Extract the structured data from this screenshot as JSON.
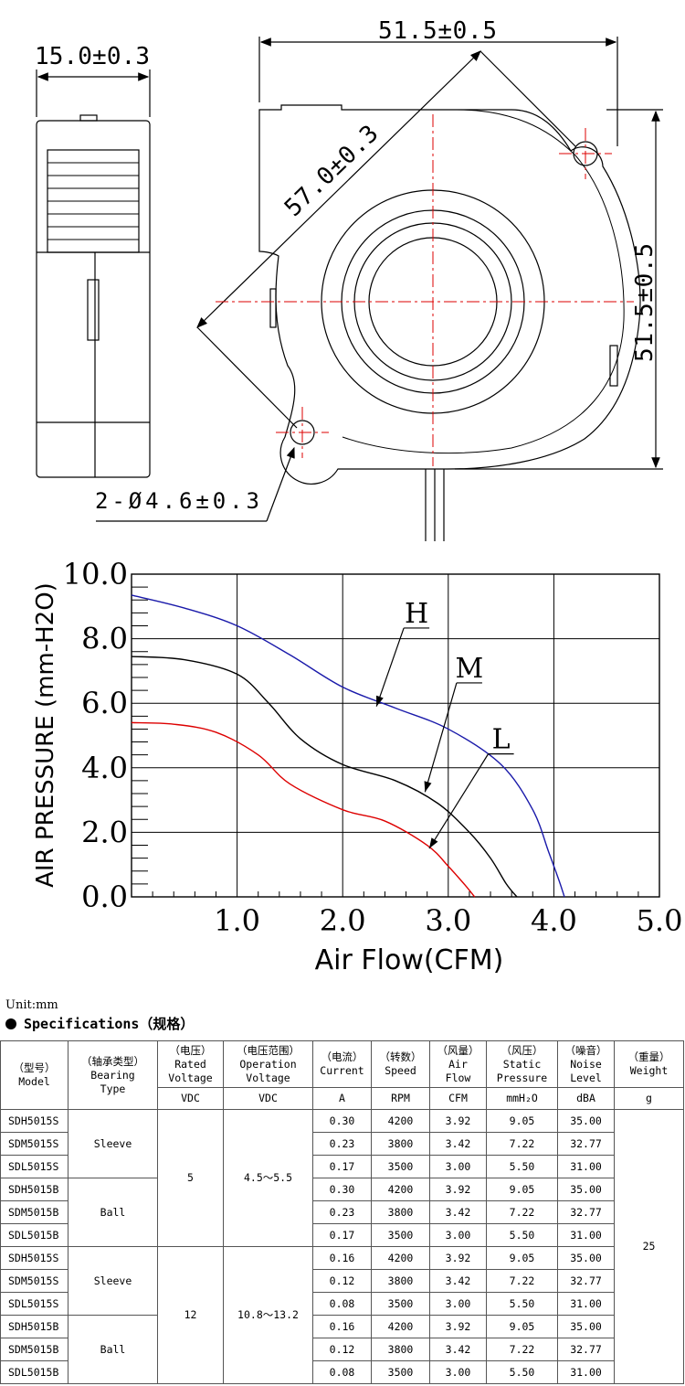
{
  "drawing": {
    "dim_width_top": "51.5±0.5",
    "dim_thickness": "15.0±0.3",
    "dim_diagonal": "57.0±0.3",
    "dim_height_right": "51.5±0.5",
    "dim_holes": "2-Ø4.6±0.3"
  },
  "chart_data": {
    "type": "line",
    "xlabel": "Air Flow(CFM)",
    "ylabel": "AIR PRESSURE (mm-H2O)",
    "xlim": [
      0,
      5.0
    ],
    "ylim": [
      0,
      10.0
    ],
    "x_ticks": [
      "1.0",
      "2.0",
      "3.0",
      "4.0",
      "5.0"
    ],
    "y_ticks": [
      "0.0",
      "2.0",
      "4.0",
      "6.0",
      "8.0",
      "10.0"
    ],
    "series": [
      {
        "name": "H",
        "color": "#1a1aaa",
        "x": [
          0,
          0.5,
          1.0,
          1.5,
          2.0,
          2.5,
          3.0,
          3.5,
          3.8,
          3.95,
          4.05,
          4.1
        ],
        "y": [
          9.35,
          8.95,
          8.4,
          7.5,
          6.5,
          5.85,
          5.2,
          4.1,
          2.7,
          1.4,
          0.5,
          0.0
        ]
      },
      {
        "name": "M",
        "color": "#000000",
        "x": [
          0,
          0.5,
          1.0,
          1.3,
          1.6,
          2.0,
          2.5,
          2.9,
          3.2,
          3.4,
          3.55,
          3.65
        ],
        "y": [
          7.45,
          7.35,
          6.9,
          6.0,
          4.9,
          4.1,
          3.6,
          2.9,
          2.0,
          1.2,
          0.4,
          0.0
        ]
      },
      {
        "name": "L",
        "color": "#dd0000",
        "x": [
          0,
          0.4,
          0.8,
          1.2,
          1.5,
          2.0,
          2.4,
          2.8,
          3.0,
          3.15,
          3.25
        ],
        "y": [
          5.4,
          5.35,
          5.1,
          4.4,
          3.5,
          2.7,
          2.35,
          1.6,
          0.95,
          0.4,
          0.0
        ]
      }
    ],
    "labels": [
      {
        "text": "H",
        "x": 2.7,
        "y": 8.5,
        "arrow_to": [
          2.32,
          5.9
        ]
      },
      {
        "text": "M",
        "x": 3.2,
        "y": 6.8,
        "arrow_to": [
          2.78,
          3.25
        ]
      },
      {
        "text": "L",
        "x": 3.5,
        "y": 4.6,
        "arrow_to": [
          2.82,
          1.5
        ]
      }
    ]
  },
  "specs": {
    "unit": "Unit:mm",
    "title": "Specifications（规格）",
    "headers": {
      "model": "（型号）|Model",
      "bearing": "（轴承类型）|Bearing|Type",
      "rated_voltage": "（电压）|Rated|Voltage",
      "operation_voltage": "（电压范围）|Operation|Voltage",
      "current": "（电流）|Current",
      "speed": "（转数）|Speed",
      "air_flow": "（风量）|Air|Flow",
      "static_pressure": "（风压）|Static|Pressure",
      "noise": "（噪音）|Noise|Level",
      "weight": "（重量）|Weight"
    },
    "units": {
      "rated_voltage": "VDC",
      "operation_voltage": "VDC",
      "current": "A",
      "speed": "RPM",
      "air_flow": "CFM",
      "static_pressure": "mmH₂O",
      "noise": "dBA",
      "weight": "g"
    },
    "bearing_sleeve": "Sleeve",
    "bearing_ball": "Ball",
    "rated_5": "5",
    "rated_12": "12",
    "op_5": "4.5～5.5",
    "op_12": "10.8～13.2",
    "weight": "25",
    "rows": [
      {
        "model": "SDH5015S",
        "current": "0.30",
        "speed": "4200",
        "air_flow": "3.92",
        "pressure": "9.05",
        "noise": "35.00"
      },
      {
        "model": "SDM5015S",
        "current": "0.23",
        "speed": "3800",
        "air_flow": "3.42",
        "pressure": "7.22",
        "noise": "32.77"
      },
      {
        "model": "SDL5015S",
        "current": "0.17",
        "speed": "3500",
        "air_flow": "3.00",
        "pressure": "5.50",
        "noise": "31.00"
      },
      {
        "model": "SDH5015B",
        "current": "0.30",
        "speed": "4200",
        "air_flow": "3.92",
        "pressure": "9.05",
        "noise": "35.00"
      },
      {
        "model": "SDM5015B",
        "current": "0.23",
        "speed": "3800",
        "air_flow": "3.42",
        "pressure": "7.22",
        "noise": "32.77"
      },
      {
        "model": "SDL5015B",
        "current": "0.17",
        "speed": "3500",
        "air_flow": "3.00",
        "pressure": "5.50",
        "noise": "31.00"
      },
      {
        "model": "SDH5015S",
        "current": "0.16",
        "speed": "4200",
        "air_flow": "3.92",
        "pressure": "9.05",
        "noise": "35.00"
      },
      {
        "model": "SDM5015S",
        "current": "0.12",
        "speed": "3800",
        "air_flow": "3.42",
        "pressure": "7.22",
        "noise": "32.77"
      },
      {
        "model": "SDL5015S",
        "current": "0.08",
        "speed": "3500",
        "air_flow": "3.00",
        "pressure": "5.50",
        "noise": "31.00"
      },
      {
        "model": "SDH5015B",
        "current": "0.16",
        "speed": "4200",
        "air_flow": "3.92",
        "pressure": "9.05",
        "noise": "35.00"
      },
      {
        "model": "SDM5015B",
        "current": "0.12",
        "speed": "3800",
        "air_flow": "3.42",
        "pressure": "7.22",
        "noise": "32.77"
      },
      {
        "model": "SDL5015B",
        "current": "0.08",
        "speed": "3500",
        "air_flow": "3.00",
        "pressure": "5.50",
        "noise": "31.00"
      }
    ]
  }
}
